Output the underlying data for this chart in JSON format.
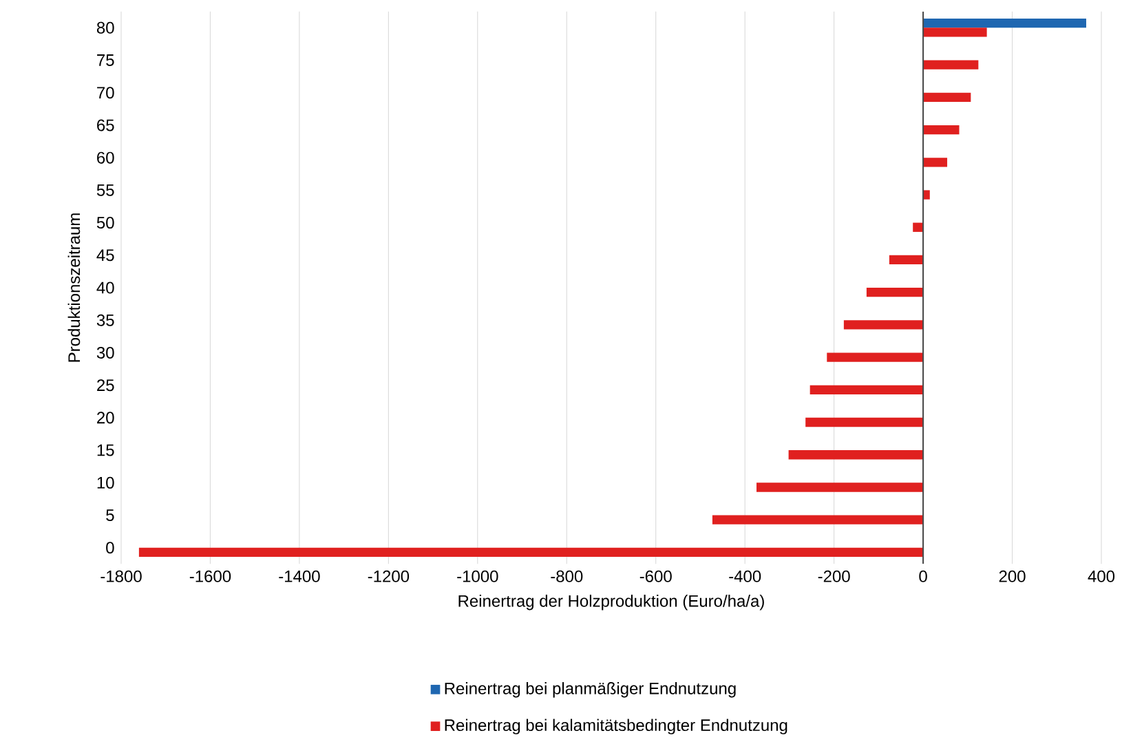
{
  "chart_data": {
    "type": "bar",
    "orientation": "horizontal",
    "categories": [
      "80",
      "75",
      "70",
      "65",
      "60",
      "55",
      "50",
      "45",
      "40",
      "35",
      "30",
      "25",
      "20",
      "15",
      "10",
      "5",
      "0"
    ],
    "series": [
      {
        "name": "Reinertrag bei planmäßiger Endnutzung",
        "color": "#1f67b1",
        "values": [
          366,
          null,
          null,
          null,
          null,
          null,
          null,
          null,
          null,
          null,
          null,
          null,
          null,
          null,
          null,
          null,
          null
        ]
      },
      {
        "name": "Reinertrag bei kalamitätsbedingter Endnutzung",
        "color": "#e0201f",
        "values": [
          143,
          124,
          107,
          81,
          54,
          15,
          -23,
          -76,
          -127,
          -178,
          -216,
          -254,
          -264,
          -302,
          -374,
          -473,
          -1760
        ]
      }
    ],
    "xlim": [
      -1800,
      400
    ],
    "xticks": [
      -1800,
      -1600,
      -1400,
      -1200,
      -1000,
      -800,
      -600,
      -400,
      -200,
      0,
      200,
      400
    ],
    "xlabel": "Reinertrag der Holzproduktion (Euro/ha/a)",
    "ylabel": "Produktionszeitraum",
    "grid": "x",
    "legend": "bottom"
  }
}
